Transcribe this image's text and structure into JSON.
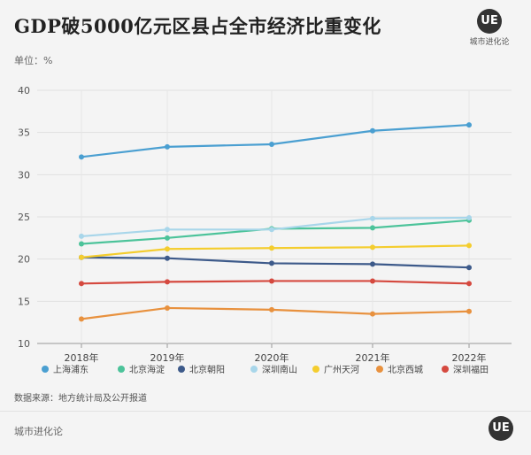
{
  "header": {
    "title": "GDP破5000亿元区县占全市经济比重变化",
    "logo_mark": "UE",
    "logo_text": "城市进化论"
  },
  "unit_label": "单位：%",
  "source": "数据来源：地方统计局及公开报道",
  "footer": {
    "brand": "城市进化论",
    "logo_mark": "UE"
  },
  "chart_data": {
    "type": "line",
    "title": "GDP破5000亿元区县占全市经济比重变化",
    "xlabel": "",
    "ylabel": "单位：%",
    "categories": [
      "2018年",
      "2019年",
      "2020年",
      "2021年",
      "2022年"
    ],
    "ylim": [
      10,
      40
    ],
    "yticks": [
      10,
      15,
      20,
      25,
      30,
      35,
      40
    ],
    "grid": true,
    "legend_position": "bottom",
    "series": [
      {
        "name": "上海浦东",
        "color": "#4a9fd1",
        "values": [
          32.1,
          33.3,
          33.6,
          35.2,
          35.9
        ]
      },
      {
        "name": "北京海淀",
        "color": "#4cc39a",
        "values": [
          21.8,
          22.5,
          23.6,
          23.7,
          24.6
        ]
      },
      {
        "name": "北京朝阳",
        "color": "#3d5a8a",
        "values": [
          20.2,
          20.1,
          19.5,
          19.4,
          19.0
        ]
      },
      {
        "name": "深圳南山",
        "color": "#a8d6ea",
        "values": [
          22.7,
          23.5,
          23.5,
          24.8,
          24.9
        ]
      },
      {
        "name": "广州天河",
        "color": "#f4cd2e",
        "values": [
          20.2,
          21.2,
          21.3,
          21.4,
          21.6
        ]
      },
      {
        "name": "北京西城",
        "color": "#e8913e",
        "values": [
          12.9,
          14.2,
          14.0,
          13.5,
          13.8
        ]
      },
      {
        "name": "深圳福田",
        "color": "#d5493f",
        "values": [
          17.1,
          17.3,
          17.4,
          17.4,
          17.1
        ]
      }
    ]
  }
}
